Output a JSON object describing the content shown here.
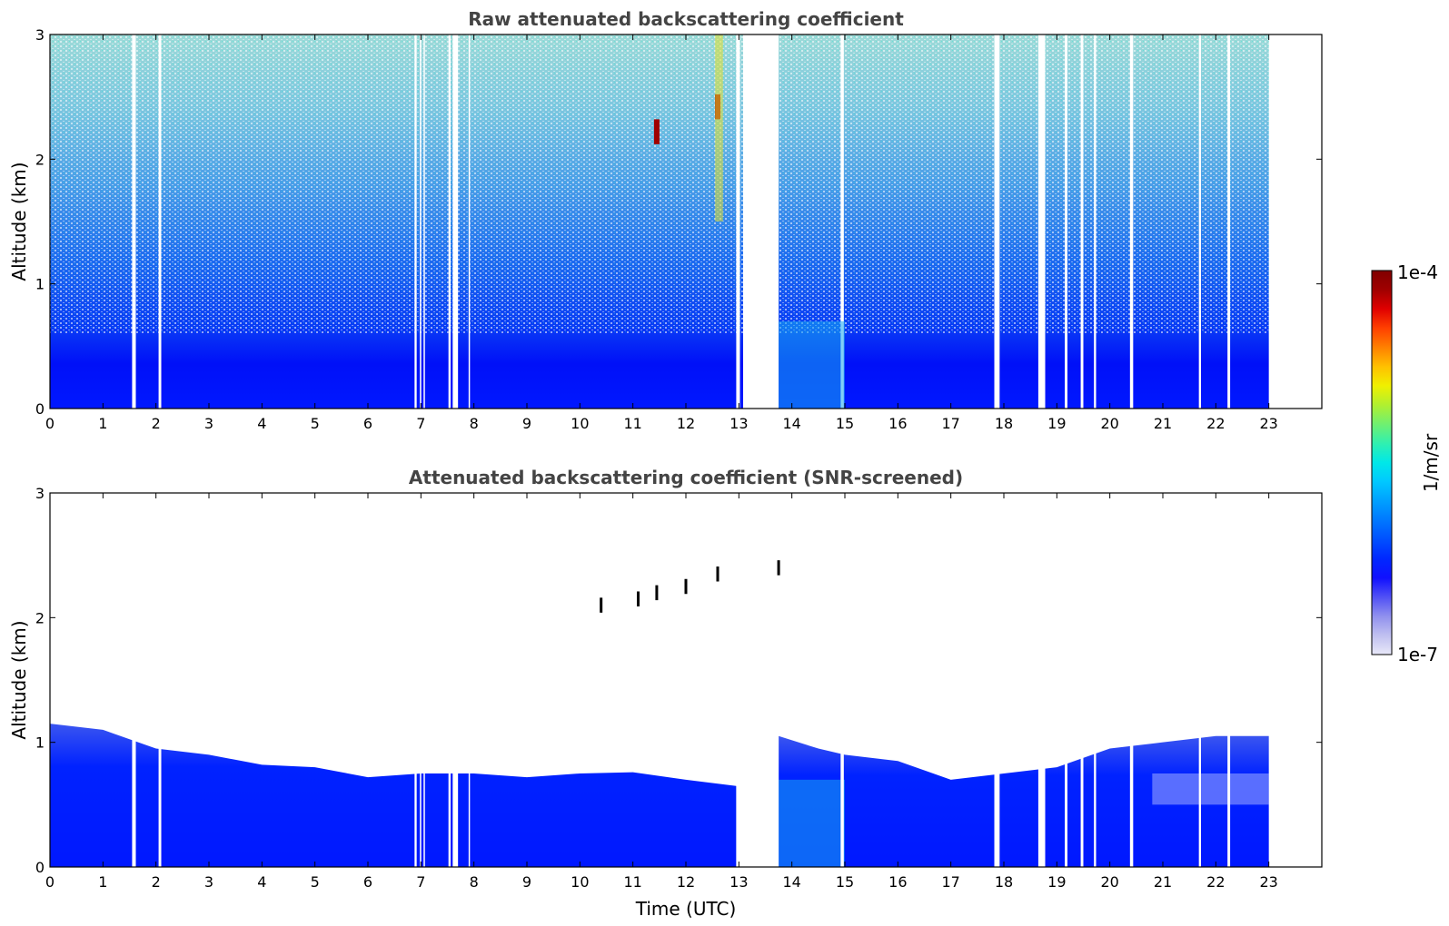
{
  "chart_data": [
    {
      "type": "heatmap",
      "title": "Raw attenuated backscattering coefficient",
      "xlabel": "",
      "ylabel": "Altitude (km)",
      "xlim": [
        0,
        24
      ],
      "ylim": [
        0,
        3
      ],
      "x_ticks": [
        "0",
        "1",
        "2",
        "3",
        "4",
        "5",
        "6",
        "7",
        "8",
        "9",
        "10",
        "11",
        "12",
        "13",
        "14",
        "15",
        "16",
        "17",
        "18",
        "19",
        "20",
        "21",
        "22",
        "23"
      ],
      "y_ticks": [
        "0",
        "1",
        "2",
        "3"
      ],
      "data_x_range": [
        0,
        23
      ],
      "gaps_utc": [
        [
          1.55,
          1.62
        ],
        [
          2.05,
          2.1
        ],
        [
          6.88,
          6.92
        ],
        [
          6.98,
          7.0
        ],
        [
          7.05,
          7.07
        ],
        [
          7.52,
          7.56
        ],
        [
          7.6,
          7.7
        ],
        [
          7.9,
          7.92
        ],
        [
          12.95,
          13.02
        ],
        [
          13.08,
          13.75
        ],
        [
          14.92,
          14.98
        ],
        [
          17.82,
          17.92
        ],
        [
          18.65,
          18.78
        ],
        [
          19.15,
          19.2
        ],
        [
          19.45,
          19.5
        ],
        [
          19.7,
          19.74
        ],
        [
          20.38,
          20.44
        ],
        [
          21.68,
          21.72
        ],
        [
          22.22,
          22.27
        ]
      ],
      "cloud_features": [
        {
          "time": 11.45,
          "altitude": 2.2,
          "level": "1e-4"
        },
        {
          "time": 12.6,
          "altitude": 2.4,
          "level": "1e-4"
        }
      ],
      "colorscale": {
        "min": "1e-7",
        "max": "1e-4",
        "unit": "1/m/sr",
        "scale": "log"
      }
    },
    {
      "type": "heatmap",
      "title": "Attenuated backscattering coefficient (SNR-screened)",
      "xlabel": "Time (UTC)",
      "ylabel": "Altitude (km)",
      "xlim": [
        0,
        24
      ],
      "ylim": [
        0,
        3
      ],
      "x_ticks": [
        "0",
        "1",
        "2",
        "3",
        "4",
        "5",
        "6",
        "7",
        "8",
        "9",
        "10",
        "11",
        "12",
        "13",
        "14",
        "15",
        "16",
        "17",
        "18",
        "19",
        "20",
        "21",
        "22",
        "23"
      ],
      "y_ticks": [
        "0",
        "1",
        "2",
        "3"
      ],
      "data_x_range": [
        0,
        23
      ],
      "boundary_layer_top_km": [
        [
          0,
          1.15
        ],
        [
          1,
          1.1
        ],
        [
          2,
          0.95
        ],
        [
          3,
          0.9
        ],
        [
          4,
          0.82
        ],
        [
          5,
          0.8
        ],
        [
          6,
          0.72
        ],
        [
          7,
          0.75
        ],
        [
          8,
          0.75
        ],
        [
          9,
          0.72
        ],
        [
          10,
          0.75
        ],
        [
          11,
          0.76
        ],
        [
          12,
          0.7
        ],
        [
          12.95,
          0.65
        ],
        [
          13.75,
          1.05
        ],
        [
          14.5,
          0.95
        ],
        [
          15,
          0.9
        ],
        [
          16,
          0.85
        ],
        [
          17,
          0.7
        ],
        [
          18,
          0.75
        ],
        [
          19,
          0.8
        ],
        [
          20,
          0.95
        ],
        [
          21,
          1.0
        ],
        [
          22,
          1.05
        ],
        [
          23,
          1.05
        ]
      ],
      "cloud_features": [
        {
          "time": 10.4,
          "altitude": 2.1
        },
        {
          "time": 11.1,
          "altitude": 2.15
        },
        {
          "time": 11.45,
          "altitude": 2.2
        },
        {
          "time": 12.0,
          "altitude": 2.25
        },
        {
          "time": 12.6,
          "altitude": 2.35
        },
        {
          "time": 13.75,
          "altitude": 2.4
        }
      ],
      "colorscale": {
        "min": "1e-7",
        "max": "1e-4",
        "unit": "1/m/sr",
        "scale": "log"
      }
    }
  ],
  "colorbar": {
    "max_label": "1e-4",
    "min_label": "1e-7",
    "unit_label": "1/m/sr",
    "colors": [
      "#e8e8f8",
      "#c0c0f0",
      "#9090ee",
      "#5050f5",
      "#1010ff",
      "#0028ff",
      "#0050ff",
      "#0078ff",
      "#00a0ff",
      "#00c8ff",
      "#00e8e8",
      "#30f0b0",
      "#70f070",
      "#b0f030",
      "#f0f000",
      "#ffc000",
      "#ff8000",
      "#ff4000",
      "#e00000",
      "#a00000",
      "#800000"
    ]
  }
}
